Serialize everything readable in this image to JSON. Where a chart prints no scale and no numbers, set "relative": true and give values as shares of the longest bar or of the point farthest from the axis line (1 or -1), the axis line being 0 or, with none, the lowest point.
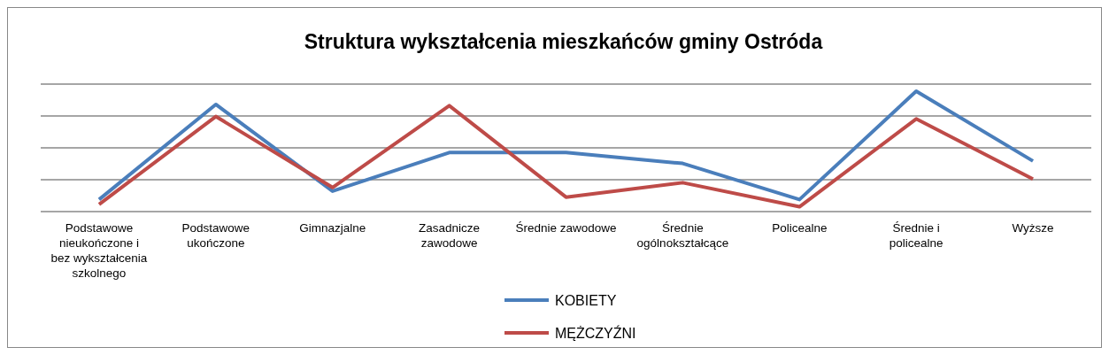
{
  "chart_data": {
    "type": "line",
    "title": "Struktura wykształcenia mieszkańców gminy Ostróda",
    "relative": true,
    "grid": true,
    "legend": "bottom",
    "marker": "none",
    "line_style": "solid",
    "categories": [
      "Podstawowe nieukończone i bez wykształcenia szkolnego",
      "Podstawowe ukończone",
      "Gimnazjalne",
      "Zasadnicze zawodowe",
      "Średnie zawodowe",
      "Średnie ogólnokształcące",
      "Policealne",
      "Średnie i policealne",
      "Wyższe"
    ],
    "series": [
      {
        "name": "KOBIETY",
        "color": "#4a7ebb",
        "values": [
          0.1,
          0.89,
          0.17,
          0.49,
          0.49,
          0.4,
          0.1,
          1,
          0.42
        ]
      },
      {
        "name": "MĘŻCZYŹNI",
        "color": "#be4b48",
        "values": [
          0.06,
          0.79,
          0.2,
          0.88,
          0.12,
          0.24,
          0.04,
          0.77,
          0.27
        ]
      }
    ]
  }
}
